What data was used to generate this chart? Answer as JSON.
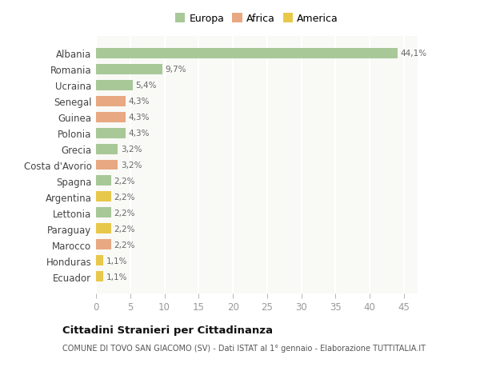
{
  "categories": [
    "Albania",
    "Romania",
    "Ucraina",
    "Senegal",
    "Guinea",
    "Polonia",
    "Grecia",
    "Costa d'Avorio",
    "Spagna",
    "Argentina",
    "Lettonia",
    "Paraguay",
    "Marocco",
    "Honduras",
    "Ecuador"
  ],
  "values": [
    44.1,
    9.7,
    5.4,
    4.3,
    4.3,
    4.3,
    3.2,
    3.2,
    2.2,
    2.2,
    2.2,
    2.2,
    2.2,
    1.1,
    1.1
  ],
  "labels": [
    "44,1%",
    "9,7%",
    "5,4%",
    "4,3%",
    "4,3%",
    "4,3%",
    "3,2%",
    "3,2%",
    "2,2%",
    "2,2%",
    "2,2%",
    "2,2%",
    "2,2%",
    "1,1%",
    "1,1%"
  ],
  "colors": [
    "#a8c898",
    "#a8c898",
    "#a8c898",
    "#e8a882",
    "#e8a882",
    "#a8c898",
    "#a8c898",
    "#e8a882",
    "#a8c898",
    "#e8c84a",
    "#a8c898",
    "#e8c84a",
    "#e8a882",
    "#e8c84a",
    "#e8c84a"
  ],
  "legend_labels": [
    "Europa",
    "Africa",
    "America"
  ],
  "legend_colors": [
    "#a8c898",
    "#e8a882",
    "#e8c84a"
  ],
  "title": "Cittadini Stranieri per Cittadinanza",
  "subtitle": "COMUNE DI TOVO SAN GIACOMO (SV) - Dati ISTAT al 1° gennaio - Elaborazione TUTTITALIA.IT",
  "xlim": [
    0,
    47
  ],
  "xticks": [
    0,
    5,
    10,
    15,
    20,
    25,
    30,
    35,
    40,
    45
  ],
  "bg_color": "#ffffff",
  "plot_bg_color": "#f9f9f6",
  "grid_color": "#ffffff"
}
